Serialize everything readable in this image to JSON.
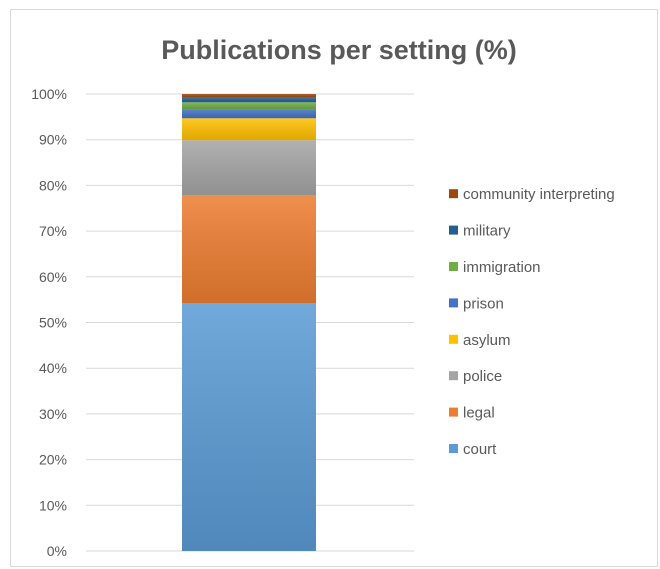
{
  "chart_data": {
    "type": "bar",
    "stacked": true,
    "normalized": true,
    "title": "Publications per setting (%)",
    "categories": [
      ""
    ],
    "ylim": [
      0,
      100
    ],
    "yticks": [
      "0%",
      "10%",
      "20%",
      "30%",
      "40%",
      "50%",
      "60%",
      "70%",
      "80%",
      "90%",
      "100%"
    ],
    "grid": true,
    "legend_position": "right",
    "series": [
      {
        "name": "court",
        "values": [
          54.2
        ],
        "color": "#5B9BD5"
      },
      {
        "name": "legal",
        "values": [
          23.7
        ],
        "color": "#ED7D31"
      },
      {
        "name": "police",
        "values": [
          12.0
        ],
        "color": "#A5A5A5"
      },
      {
        "name": "asylum",
        "values": [
          4.8
        ],
        "color": "#FFC000"
      },
      {
        "name": "prison",
        "values": [
          2.0
        ],
        "color": "#4472C4"
      },
      {
        "name": "immigration",
        "values": [
          1.5
        ],
        "color": "#70AD47"
      },
      {
        "name": "military",
        "values": [
          1.0
        ],
        "color": "#255E91"
      },
      {
        "name": "community interpreting",
        "values": [
          0.8
        ],
        "color": "#9E480E"
      }
    ]
  }
}
